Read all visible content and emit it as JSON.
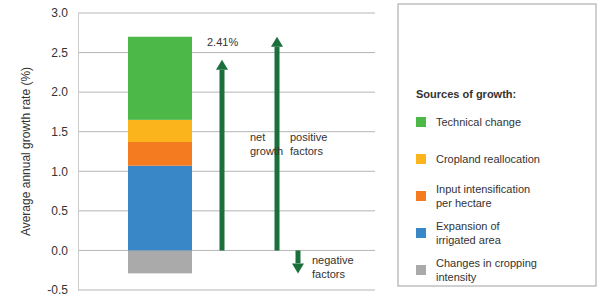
{
  "chart_data": {
    "type": "bar",
    "stacked": true,
    "y_label": "Average annual growth rate (%)",
    "legend_title": "Sources of growth:",
    "legend": "right",
    "categories": [
      null
    ],
    "series": [
      {
        "name": "Technical change",
        "color": "#4cb848",
        "values": [
          1.05
        ]
      },
      {
        "name": "Cropland reallocation",
        "color": "#fbb41b",
        "values": [
          0.28
        ]
      },
      {
        "name": "Input intensification per hectare",
        "color": "#f47b20",
        "values": [
          0.3
        ]
      },
      {
        "name": "Expansion of irrigated area",
        "color": "#3a87c8",
        "values": [
          1.07
        ]
      },
      {
        "name": "Changes in cropping intensity",
        "color": "#aaaaaa",
        "values": [
          -0.29
        ]
      }
    ],
    "ylim": [
      -0.5,
      3
    ],
    "yticks": [
      -0.5,
      {
        "value": 0,
        "label": "0.0"
      },
      0.5,
      {
        "value": 1,
        "label": "1.0"
      },
      1.5,
      {
        "value": 2,
        "label": "2.0"
      },
      2.5,
      {
        "value": 3,
        "label": "3.0"
      }
    ],
    "grid": true,
    "tick_labels": "y",
    "annotations": [
      "2.41%",
      "net growth",
      "positive factors",
      "negative factors"
    ]
  }
}
